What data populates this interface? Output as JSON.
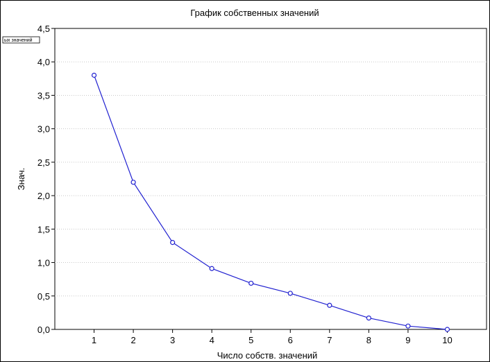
{
  "chart_data": {
    "type": "line",
    "title": "График собственных значений",
    "xlabel": "Число собств. значений",
    "ylabel": "Знач.",
    "legend_label": "ых значений",
    "x": [
      1,
      2,
      3,
      4,
      5,
      6,
      7,
      8,
      9,
      10
    ],
    "x_tick_labels": [
      "1",
      "2",
      "3",
      "4",
      "5",
      "6",
      "7",
      "8",
      "9",
      "10"
    ],
    "series": [
      {
        "values": [
          3.8,
          2.2,
          1.3,
          0.91,
          0.69,
          0.54,
          0.36,
          0.17,
          0.05,
          0.0
        ]
      }
    ],
    "y_ticks": [
      0,
      0.5,
      1.0,
      1.5,
      2.0,
      2.5,
      3.0,
      3.5,
      4.0,
      4.5
    ],
    "y_tick_labels": [
      "0,0",
      "0,5",
      "1,0",
      "1,5",
      "2,0",
      "2,5",
      "3,0",
      "3,5",
      "4,0",
      "4,5"
    ],
    "ylim": [
      0,
      4.5
    ],
    "xlim": [
      0,
      11
    ],
    "grid": true,
    "legend_position": "top-left",
    "colors": {
      "line": "#2020d0",
      "marker_fill": "#ffffff",
      "grid": "#c8c8c8"
    }
  }
}
